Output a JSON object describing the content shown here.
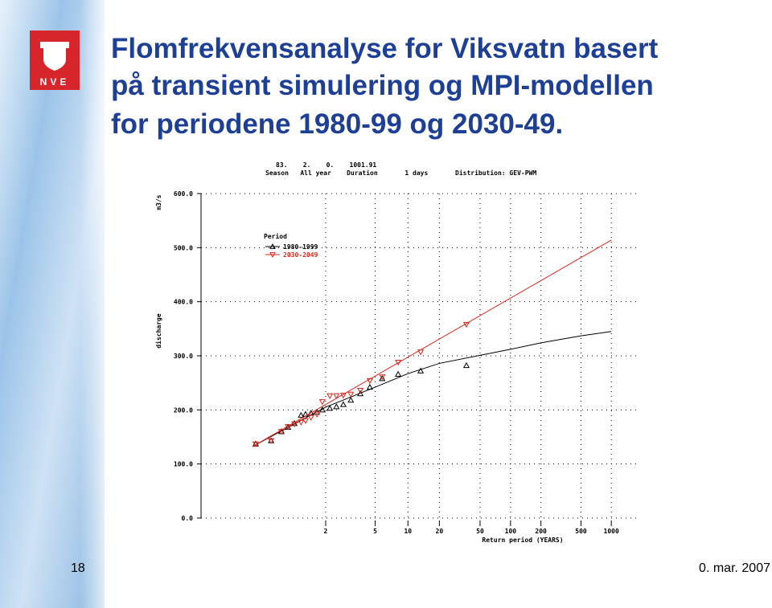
{
  "slide": {
    "title_lines": [
      "Flomfrekvensanalyse for Viksvatn basert",
      "på transient simulering og MPI-modellen",
      "for periodene 1980-99 og 2030-49."
    ],
    "logo_text": "NVE",
    "page_number": 18,
    "date": "0. mar. 2007"
  },
  "chart_data": {
    "type": "scatter",
    "header_lines": [
      "83.    2.    0.    1001.91",
      "Season   All year    Duration       1 days       Distribution: GEV-PWM"
    ],
    "y_unit_label": "m3/s",
    "y_label": "discharge",
    "x_label": "Return period (YEARS)",
    "legend_title": "Period",
    "xscale": "gumbel",
    "xlim": [
      1.000006,
      1830
    ],
    "xticks": [
      2,
      5,
      10,
      20,
      50,
      100,
      200,
      500,
      1000
    ],
    "ylim": [
      0,
      600
    ],
    "yticks": [
      {
        "value": 0,
        "label": "0.0"
      },
      {
        "value": 100,
        "label": "100.0"
      },
      {
        "value": 200,
        "label": "200.0"
      },
      {
        "value": 300,
        "label": "300.0"
      },
      {
        "value": 400,
        "label": "400.0"
      },
      {
        "value": 500,
        "label": "500.0"
      },
      {
        "value": 600,
        "label": "600.0"
      }
    ],
    "grid": true,
    "x": [
      1.033,
      1.098,
      1.174,
      1.24,
      1.32,
      1.42,
      1.5,
      1.61,
      1.75,
      1.9,
      2.14,
      2.39,
      2.7,
      3.1,
      3.72,
      4.49,
      5.78,
      8.1,
      13.2,
      36.7
    ],
    "series": [
      {
        "name": "1980-1999",
        "color": "#000000",
        "marker": "up",
        "values": [
          137,
          143,
          160,
          168,
          175,
          190,
          192,
          194,
          196,
          200,
          203,
          206,
          210,
          218,
          230,
          242,
          258,
          266,
          272,
          282
        ],
        "fit": {
          "x": [
            1.025,
            1.5,
            2,
            5,
            10,
            20,
            50,
            100,
            200,
            500,
            1000
          ],
          "values": [
            132,
            185,
            205,
            242,
            267,
            286,
            301,
            312,
            324,
            337,
            345
          ]
        }
      },
      {
        "name": "2030-2049",
        "color": "#e0251b",
        "marker": "down",
        "values": [
          137,
          143,
          160,
          169,
          174,
          177,
          180,
          186,
          192,
          215,
          226,
          226,
          227,
          229,
          236,
          254,
          261,
          288,
          307,
          358
        ],
        "fit": {
          "x": [
            1.025,
            1000
          ],
          "values": [
            132,
            514
          ]
        }
      }
    ]
  }
}
